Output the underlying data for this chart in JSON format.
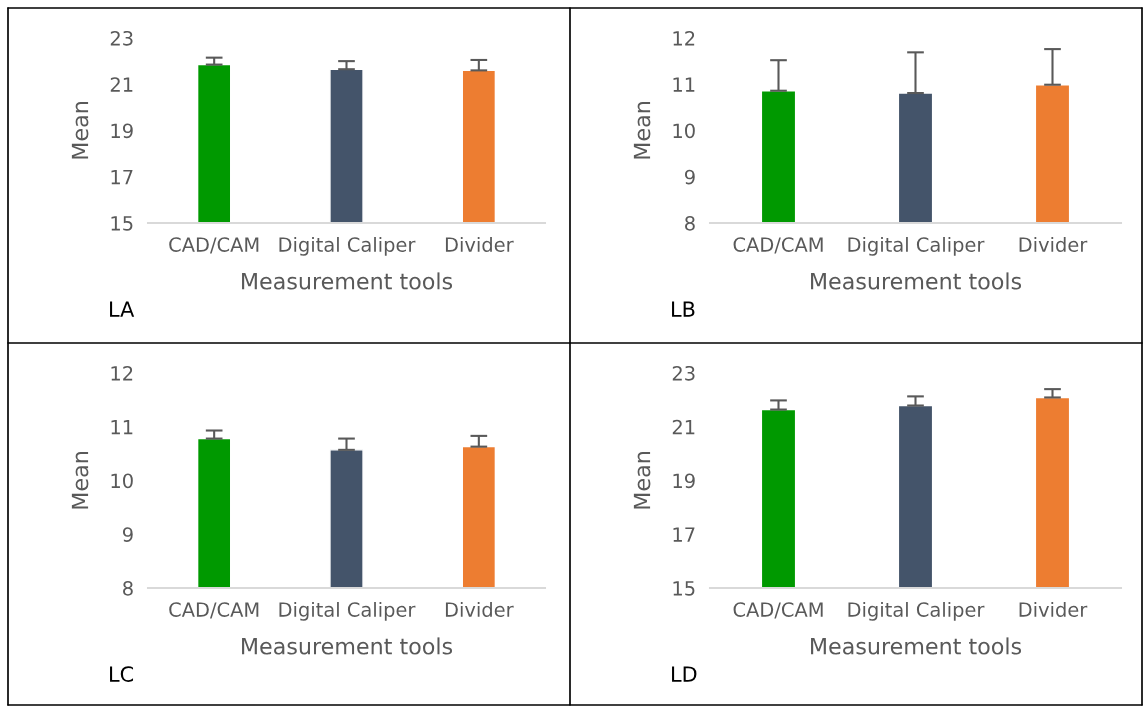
{
  "chart_data": [
    {
      "type": "bar",
      "categories": [
        "CAD/CAM",
        "Digital Caliper",
        "Divider"
      ],
      "colors": [
        "#009900",
        "#44546a",
        "#ed7d31"
      ],
      "values": [
        21.85,
        21.65,
        21.6
      ],
      "errors": [
        [
          21.85,
          22.15
        ],
        [
          21.65,
          22.0
        ],
        [
          21.6,
          22.05
        ]
      ],
      "ylim": [
        15,
        23
      ],
      "yticks": [
        15,
        17,
        19,
        21,
        23
      ],
      "ylabel": "Mean",
      "xlabel": "Measurement tools",
      "annotations": [
        "LA"
      ],
      "grid": false,
      "legend": false
    },
    {
      "type": "bar",
      "categories": [
        "CAD/CAM",
        "Digital Caliper",
        "Divider"
      ],
      "colors": [
        "#009900",
        "#44546a",
        "#ed7d31"
      ],
      "values": [
        10.86,
        10.81,
        10.99
      ],
      "errors": [
        [
          10.86,
          11.52
        ],
        [
          10.81,
          11.69
        ],
        [
          10.99,
          11.76
        ]
      ],
      "ylim": [
        8,
        12
      ],
      "yticks": [
        8,
        9,
        10,
        11,
        12
      ],
      "ylabel": "Mean",
      "xlabel": "Measurement tools",
      "annotations": [
        "LB"
      ],
      "grid": false,
      "legend": false
    },
    {
      "type": "bar",
      "categories": [
        "CAD/CAM",
        "Digital Caliper",
        "Divider"
      ],
      "colors": [
        "#009900",
        "#44546a",
        "#ed7d31"
      ],
      "values": [
        10.78,
        10.57,
        10.63
      ],
      "errors": [
        [
          10.78,
          10.93
        ],
        [
          10.57,
          10.78
        ],
        [
          10.63,
          10.83
        ]
      ],
      "ylim": [
        8,
        12
      ],
      "yticks": [
        8,
        9,
        10,
        11,
        12
      ],
      "ylabel": "Mean",
      "xlabel": "Measurement tools",
      "annotations": [
        "LC"
      ],
      "grid": false,
      "legend": false
    },
    {
      "type": "bar",
      "categories": [
        "CAD/CAM",
        "Digital Caliper",
        "Divider"
      ],
      "colors": [
        "#009900",
        "#44546a",
        "#ed7d31"
      ],
      "values": [
        21.64,
        21.79,
        22.09
      ],
      "errors": [
        [
          21.64,
          21.98
        ],
        [
          21.79,
          22.13
        ],
        [
          22.09,
          22.4
        ]
      ],
      "ylim": [
        15,
        23
      ],
      "yticks": [
        15,
        17,
        19,
        21,
        23
      ],
      "ylabel": "Mean",
      "xlabel": "Measurement tools",
      "annotations": [
        "LD"
      ],
      "grid": false,
      "legend": false
    }
  ]
}
